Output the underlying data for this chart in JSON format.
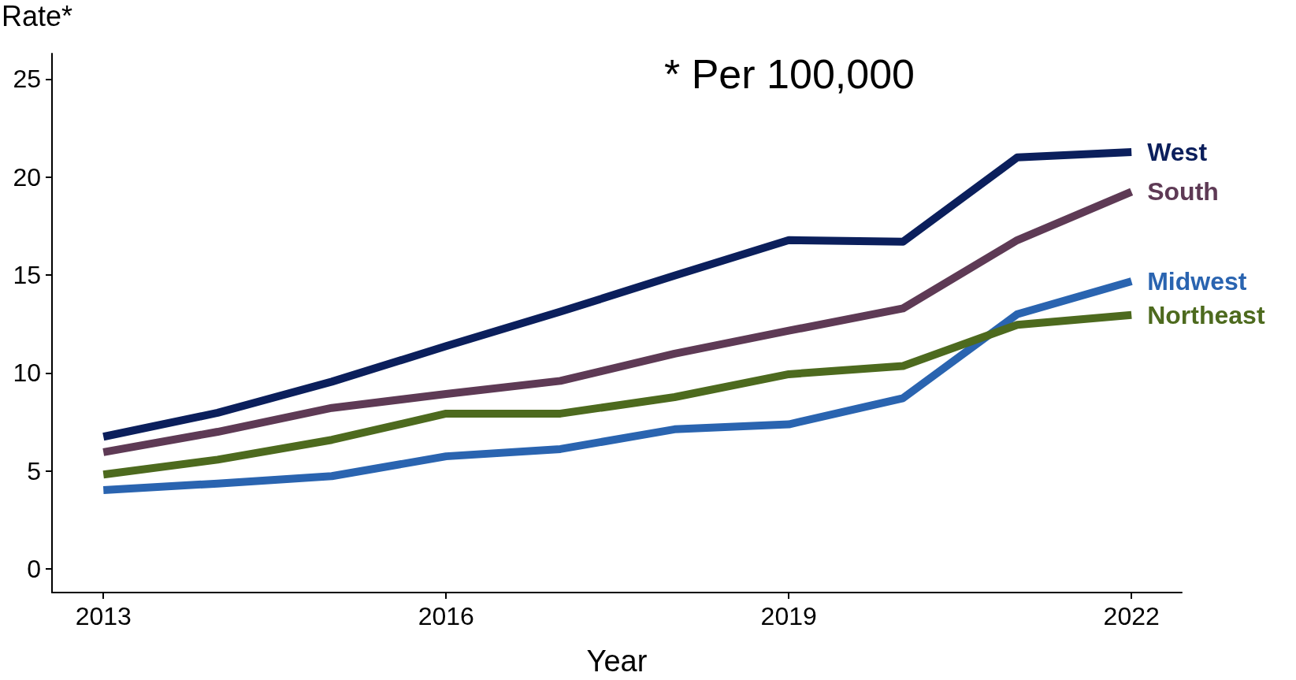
{
  "chart_data": {
    "type": "line",
    "xlabel": "Year",
    "ylabel": "Rate*",
    "annotations": [
      "* Per 100,000"
    ],
    "x": [
      2013,
      2014,
      2015,
      2016,
      2017,
      2018,
      2019,
      2020,
      2021,
      2022
    ],
    "series": [
      {
        "name": "West",
        "color": "#0b1f5c",
        "values": [
          6.75,
          7.97,
          9.56,
          11.37,
          13.13,
          14.97,
          16.78,
          16.7,
          21.0,
          21.27
        ]
      },
      {
        "name": "South",
        "color": "#5e3a55",
        "values": [
          5.96,
          7.0,
          8.22,
          8.93,
          9.6,
          10.99,
          12.16,
          13.3,
          16.78,
          19.25
        ]
      },
      {
        "name": "Midwest",
        "color": "#2a64b0",
        "values": [
          4.03,
          4.36,
          4.74,
          5.75,
          6.12,
          7.13,
          7.38,
          8.72,
          13.0,
          14.68
        ]
      },
      {
        "name": "Northeast",
        "color": "#4d6a1e",
        "values": [
          4.82,
          5.58,
          6.59,
          7.93,
          7.93,
          8.77,
          9.94,
          10.36,
          12.46,
          12.96
        ]
      }
    ],
    "xlim": [
      2012.55,
      2022.44
    ],
    "xticks": [
      2013,
      2016,
      2019,
      2022
    ],
    "ylim": [
      -1.2,
      26.3
    ],
    "yticks": [
      0,
      5,
      10,
      15,
      20,
      25
    ],
    "grid": false,
    "legend": false,
    "marker": "none",
    "line_style": "solid"
  }
}
